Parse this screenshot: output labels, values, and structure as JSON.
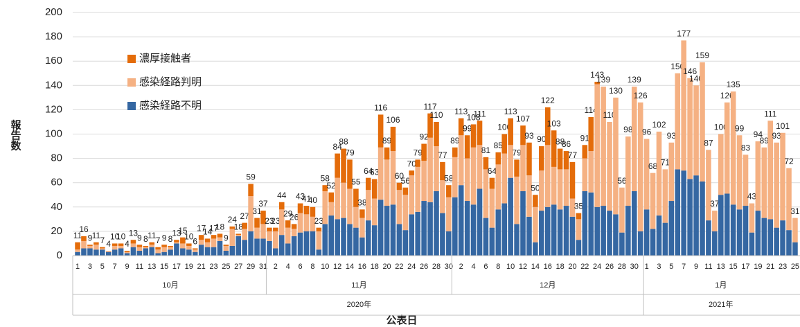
{
  "chart_data": {
    "type": "stacked_bar",
    "y_label": "報告数",
    "x_label": "公表日",
    "ylim": [
      0,
      200
    ],
    "yticks": [
      0,
      20,
      40,
      60,
      80,
      100,
      120,
      140,
      160,
      180,
      200
    ],
    "grid": true,
    "years": [
      {
        "label": "2020年",
        "months": [
          {
            "label": "10月",
            "days": [
              "1",
              null,
              "3",
              null,
              "5",
              null,
              "7",
              null,
              "9",
              null,
              "11",
              null,
              "13",
              null,
              "15",
              null,
              "17",
              null,
              "19",
              null,
              "21",
              null,
              "23",
              null,
              "25",
              null,
              "27",
              null,
              "29",
              null,
              "31"
            ]
          },
          {
            "label": "11月",
            "days": [
              null,
              "2",
              null,
              "4",
              null,
              "6",
              null,
              "8",
              null,
              "10",
              null,
              "12",
              null,
              "14",
              null,
              "16",
              null,
              "18",
              null,
              "20",
              null,
              "22",
              null,
              "24",
              null,
              "26",
              null,
              "28",
              null,
              "30"
            ]
          },
          {
            "label": "12月",
            "days": [
              null,
              "2",
              null,
              "4",
              null,
              "6",
              null,
              "8",
              null,
              "10",
              null,
              "12",
              null,
              "14",
              null,
              "16",
              null,
              "18",
              null,
              "20",
              null,
              "22",
              null,
              "24",
              null,
              "26",
              null,
              "28",
              null,
              "30",
              null
            ]
          }
        ]
      },
      {
        "label": "2021年",
        "months": [
          {
            "label": "1月",
            "days": [
              "1",
              null,
              "3",
              null,
              "5",
              null,
              "7",
              null,
              "9",
              null,
              "11",
              null,
              "13",
              null,
              "15",
              null,
              "17",
              null,
              "19",
              null,
              "21",
              null,
              "23",
              null,
              "25"
            ]
          }
        ]
      }
    ],
    "series": [
      {
        "name": "感染経路不明",
        "color": "#3567a2",
        "values": [
          3,
          6,
          6,
          5,
          5,
          3,
          5,
          6,
          2,
          7,
          4,
          6,
          7,
          2,
          3,
          5,
          10,
          6,
          5,
          3,
          9,
          7,
          7,
          12,
          4,
          8,
          16,
          13,
          20,
          14,
          14,
          12,
          6,
          17,
          10,
          16,
          19,
          20,
          20,
          5,
          26,
          33,
          30,
          31,
          26,
          23,
          15,
          29,
          25,
          46,
          41,
          42,
          26,
          21,
          34,
          36,
          45,
          44,
          53,
          35,
          20,
          48,
          58,
          45,
          42,
          55,
          31,
          23,
          38,
          43,
          64,
          26,
          53,
          32,
          11,
          37,
          40,
          42,
          38,
          41,
          32,
          13,
          53,
          52,
          40,
          41,
          37,
          34,
          19,
          41,
          53,
          20,
          38,
          22,
          33,
          27,
          45,
          71,
          70,
          63,
          66,
          61,
          29,
          20,
          50,
          51,
          42,
          38,
          41,
          19,
          37,
          31,
          30,
          23,
          29,
          21,
          11
        ]
      },
      {
        "name": "感染経路判明",
        "color": "#f5b183",
        "values": [
          2,
          6,
          2,
          4,
          1,
          1,
          3,
          2,
          1,
          3,
          3,
          1,
          2,
          3,
          4,
          2,
          1,
          4,
          3,
          2,
          4,
          4,
          7,
          3,
          4,
          14,
          1,
          9,
          29,
          9,
          12,
          8,
          14,
          21,
          13,
          6,
          16,
          14,
          12,
          15,
          27,
          11,
          34,
          29,
          29,
          17,
          16,
          25,
          22,
          43,
          38,
          44,
          28,
          29,
          32,
          37,
          33,
          53,
          37,
          27,
          28,
          33,
          41,
          35,
          47,
          36,
          40,
          32,
          37,
          41,
          27,
          39,
          38,
          34,
          29,
          33,
          51,
          31,
          33,
          30,
          15,
          17,
          27,
          34,
          101,
          98,
          73,
          96,
          37,
          57,
          86,
          106,
          58,
          46,
          69,
          44,
          48,
          79,
          107,
          83,
          74,
          98,
          58,
          17,
          50,
          75,
          93,
          61,
          42,
          24,
          57,
          58,
          81,
          70,
          72,
          51,
          20
        ]
      },
      {
        "name": "濃厚接触者",
        "color": "#e46c0a",
        "values": [
          6,
          4,
          1,
          2,
          1,
          0,
          2,
          2,
          1,
          3,
          2,
          1,
          2,
          2,
          2,
          1,
          2,
          5,
          2,
          1,
          4,
          3,
          3,
          3,
          1,
          2,
          1,
          5,
          10,
          8,
          11,
          3,
          3,
          6,
          6,
          4,
          8,
          7,
          8,
          3,
          5,
          8,
          20,
          28,
          24,
          15,
          7,
          10,
          16,
          27,
          10,
          20,
          6,
          6,
          4,
          6,
          14,
          20,
          20,
          15,
          10,
          8,
          14,
          19,
          19,
          20,
          10,
          9,
          10,
          16,
          22,
          14,
          16,
          27,
          10,
          20,
          31,
          30,
          17,
          15,
          30,
          5,
          11,
          28,
          2,
          0,
          0,
          0,
          0,
          0,
          0,
          0,
          0,
          0,
          0,
          0,
          0,
          0,
          0,
          0,
          0,
          0,
          0,
          0,
          0,
          0,
          0,
          0,
          0,
          0,
          0,
          0,
          0,
          0,
          0,
          0,
          0
        ]
      }
    ],
    "totals": [
      11,
      16,
      9,
      11,
      7,
      4,
      10,
      10,
      4,
      13,
      9,
      8,
      11,
      7,
      9,
      8,
      13,
      15,
      10,
      6,
      17,
      14,
      17,
      18,
      9,
      24,
      18,
      27,
      59,
      31,
      37,
      23,
      23,
      44,
      29,
      26,
      43,
      41,
      40,
      23,
      58,
      52,
      84,
      88,
      79,
      55,
      38,
      64,
      63,
      116,
      89,
      106,
      60,
      56,
      70,
      79,
      92,
      117,
      110,
      77,
      58,
      89,
      113,
      99,
      108,
      111,
      81,
      64,
      85,
      100,
      113,
      79,
      107,
      93,
      50,
      90,
      122,
      103,
      88,
      86,
      77,
      35,
      91,
      114,
      143,
      139,
      110,
      130,
      56,
      98,
      139,
      126,
      96,
      68,
      102,
      71,
      93,
      150,
      177,
      146,
      140,
      159,
      87,
      37,
      100,
      126,
      135,
      99,
      83,
      43,
      94,
      89,
      111,
      93,
      101,
      72,
      31
    ]
  }
}
